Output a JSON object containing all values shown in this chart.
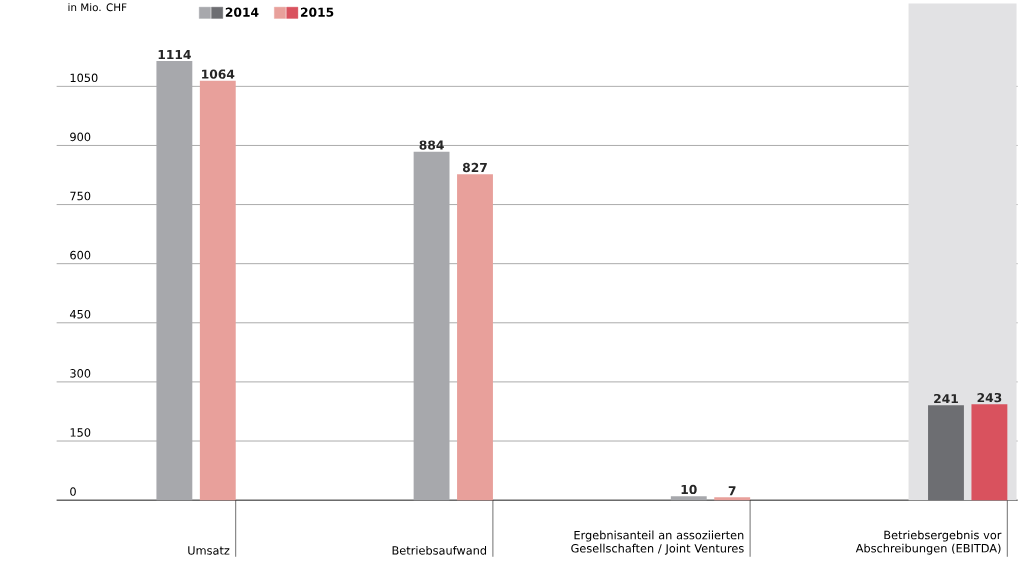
{
  "chart_data": {
    "type": "bar",
    "ylabel": "in Mio. CHF",
    "categories": [
      "Umsatz",
      "Betriebsaufwand",
      "Ergebnisanteil an assoziierten Gesellschaften / Joint Ventures",
      "Betriebsergebnis vor Abschreibungen (EBITDA)"
    ],
    "series": [
      {
        "name": "2014",
        "colors": [
          "#a7a8ac",
          "#a7a8ac",
          "#a7a8ac",
          "#6d6e72"
        ],
        "values": [
          1114,
          884,
          10,
          241
        ]
      },
      {
        "name": "2015",
        "colors": [
          "#e8a09b",
          "#e8a09b",
          "#e8a09b",
          "#d9525e"
        ],
        "values": [
          1064,
          827,
          7,
          243
        ]
      }
    ],
    "ylim": [
      0,
      1260
    ],
    "yticks": [
      0,
      150,
      300,
      450,
      600,
      750,
      900,
      1050
    ],
    "grid": "y",
    "legend": "top left",
    "data_labels": true,
    "bands": [
      {
        "axis": "x",
        "from": "Betriebsergebnis vor Abschreibungen (EBITDA)",
        "to": "Betriebsergebnis vor Abschreibungen (EBITDA)",
        "color": "#e2e2e4"
      }
    ]
  }
}
